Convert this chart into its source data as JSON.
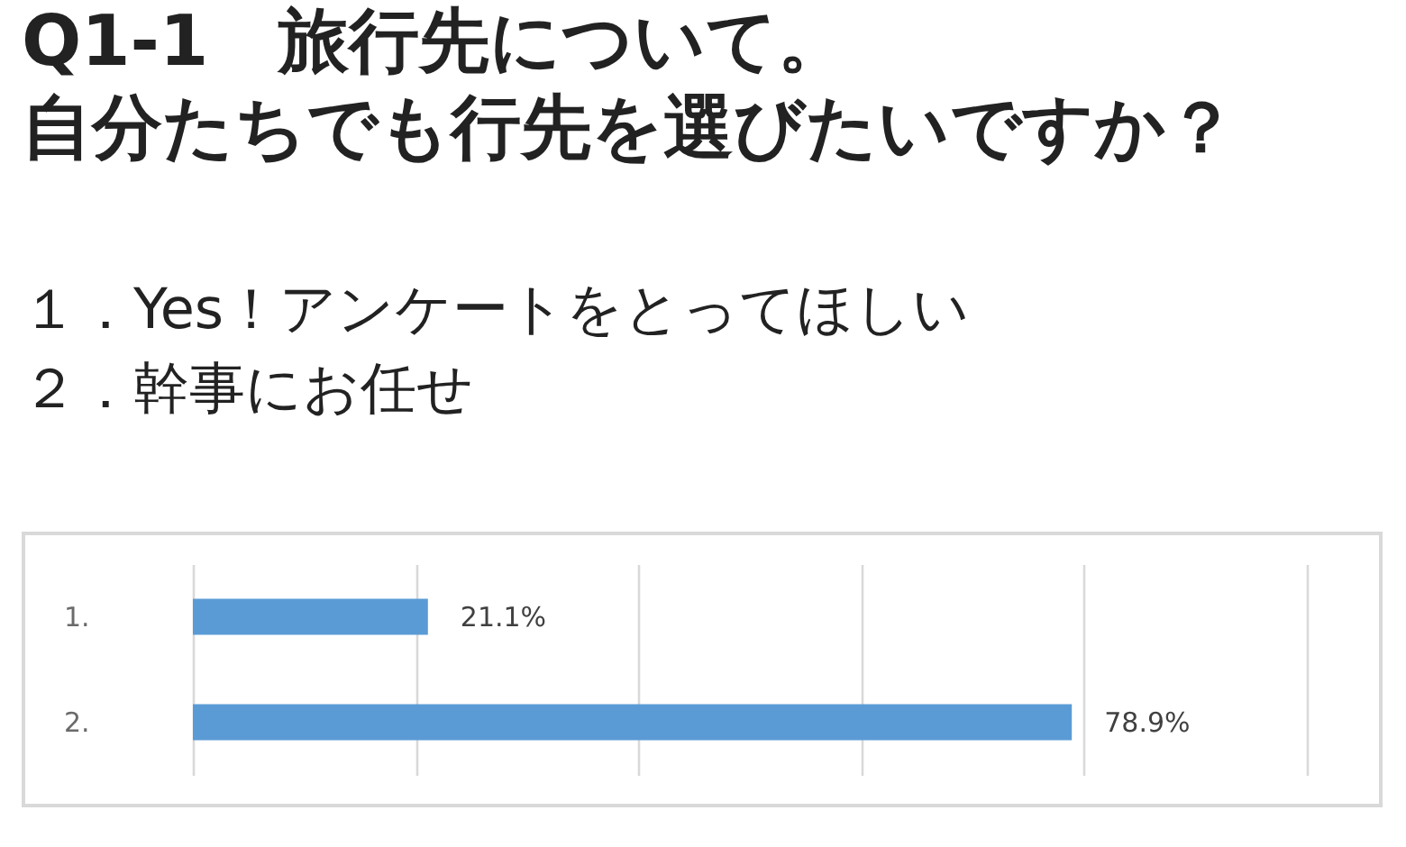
{
  "chart_data": {
    "type": "bar",
    "orientation": "horizontal",
    "title": "Q1-1　旅行先について。",
    "subtitle": "自分たちでも行先を選びたいですか？",
    "annotations": [
      "１．Yes！アンケートをとってほしい",
      "２．幹事にお任せ"
    ],
    "categories": [
      "1.",
      "2."
    ],
    "values": [
      21.1,
      78.9
    ],
    "value_labels": [
      "21.1%",
      "78.9%"
    ],
    "color": "#5b9bd5",
    "xlim": [
      0,
      100
    ],
    "xticks": [
      {
        "value": 0,
        "label": null
      },
      {
        "value": 20,
        "label": null
      },
      {
        "value": 40,
        "label": null
      },
      {
        "value": 60,
        "label": null
      },
      {
        "value": 80,
        "label": null
      },
      {
        "value": 100,
        "label": null
      }
    ],
    "grid": "x",
    "tick_labels": "y"
  }
}
